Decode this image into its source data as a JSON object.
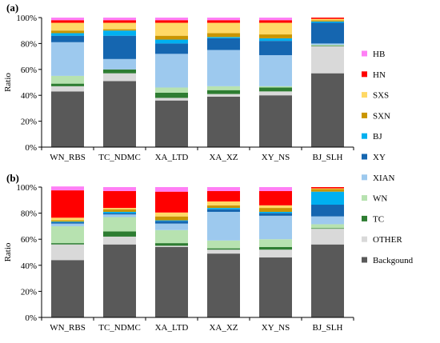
{
  "chart_data": [
    {
      "type": "bar",
      "stacked": true,
      "panel_label": "(a)",
      "ylabel": "Ratio",
      "ylim": [
        0,
        100
      ],
      "yticks": [
        "0%",
        "20%",
        "40%",
        "60%",
        "80%",
        "100%"
      ],
      "categories": [
        "WN_RBS",
        "TC_NDMC",
        "XA_LTD",
        "XA_XZ",
        "XY_NS",
        "BJ_SLH"
      ],
      "series": [
        {
          "name": "Backgound",
          "color": "#595959",
          "values": [
            43,
            51,
            36,
            39,
            40,
            57
          ]
        },
        {
          "name": "OTHER",
          "color": "#d9d9d9",
          "values": [
            4,
            6,
            2,
            2,
            3,
            21
          ]
        },
        {
          "name": "TC",
          "color": "#2e7d32",
          "values": [
            2,
            3,
            4,
            3,
            3,
            0.5
          ]
        },
        {
          "name": "WN",
          "color": "#b7e2b0",
          "values": [
            6,
            0,
            4,
            3,
            1,
            0.5
          ]
        },
        {
          "name": "XIAN",
          "color": "#9dc9ee",
          "values": [
            26,
            8,
            26,
            28,
            24,
            1
          ]
        },
        {
          "name": "XY",
          "color": "#1566b0",
          "values": [
            5,
            18,
            8,
            9,
            11,
            16
          ]
        },
        {
          "name": "BJ",
          "color": "#00b0f0",
          "values": [
            2,
            4,
            3,
            1,
            2,
            1
          ]
        },
        {
          "name": "SXN",
          "color": "#c99500",
          "values": [
            2,
            1,
            3,
            3,
            3,
            1
          ]
        },
        {
          "name": "SXS",
          "color": "#ffd966",
          "values": [
            6,
            5,
            10,
            8,
            9,
            1
          ]
        },
        {
          "name": "HN",
          "color": "#ff0000",
          "values": [
            2,
            2,
            2,
            2,
            2,
            1
          ]
        },
        {
          "name": "HB",
          "color": "#ff7ff5",
          "values": [
            2,
            2,
            2,
            2,
            2,
            0
          ]
        }
      ]
    },
    {
      "type": "bar",
      "stacked": true,
      "panel_label": "(b)",
      "ylabel": "Ratio",
      "ylim": [
        0,
        100
      ],
      "yticks": [
        "0%",
        "20%",
        "40%",
        "60%",
        "80%",
        "100%"
      ],
      "categories": [
        "WN_RBS",
        "TC_NDMC",
        "XA_LTD",
        "XA_XZ",
        "XY_NS",
        "BJ_SLH"
      ],
      "series": [
        {
          "name": "Backgound",
          "color": "#595959",
          "values": [
            44,
            56,
            54,
            49,
            46,
            56
          ]
        },
        {
          "name": "OTHER",
          "color": "#d9d9d9",
          "values": [
            12,
            6,
            1,
            3,
            6,
            12
          ]
        },
        {
          "name": "TC",
          "color": "#2e7d32",
          "values": [
            1,
            4,
            2,
            1,
            2,
            0.5
          ]
        },
        {
          "name": "WN",
          "color": "#b7e2b0",
          "values": [
            13,
            11,
            10,
            6,
            6,
            3
          ]
        },
        {
          "name": "XIAN",
          "color": "#9dc9ee",
          "values": [
            2,
            2,
            5,
            22,
            18,
            6
          ]
        },
        {
          "name": "XY",
          "color": "#1566b0",
          "values": [
            1,
            1,
            2,
            2,
            2,
            9
          ]
        },
        {
          "name": "BJ",
          "color": "#00b0f0",
          "values": [
            0.5,
            1,
            0.5,
            1,
            1,
            10
          ]
        },
        {
          "name": "SXN",
          "color": "#c99500",
          "values": [
            1,
            2,
            3,
            2,
            3,
            2
          ]
        },
        {
          "name": "SXS",
          "color": "#ffd966",
          "values": [
            2,
            1,
            3,
            3,
            2,
            0.5
          ]
        },
        {
          "name": "HN",
          "color": "#ff0000",
          "values": [
            21,
            13,
            16,
            8,
            11,
            1
          ]
        },
        {
          "name": "HB",
          "color": "#ff7ff5",
          "values": [
            3,
            3,
            3.5,
            3,
            3,
            0
          ]
        }
      ]
    }
  ],
  "legend": {
    "placement": "right",
    "order_top_to_bottom": [
      "HB",
      "HN",
      "SXS",
      "SXN",
      "BJ",
      "XY",
      "XIAN",
      "WN",
      "TC",
      "OTHER",
      "Backgound"
    ]
  }
}
